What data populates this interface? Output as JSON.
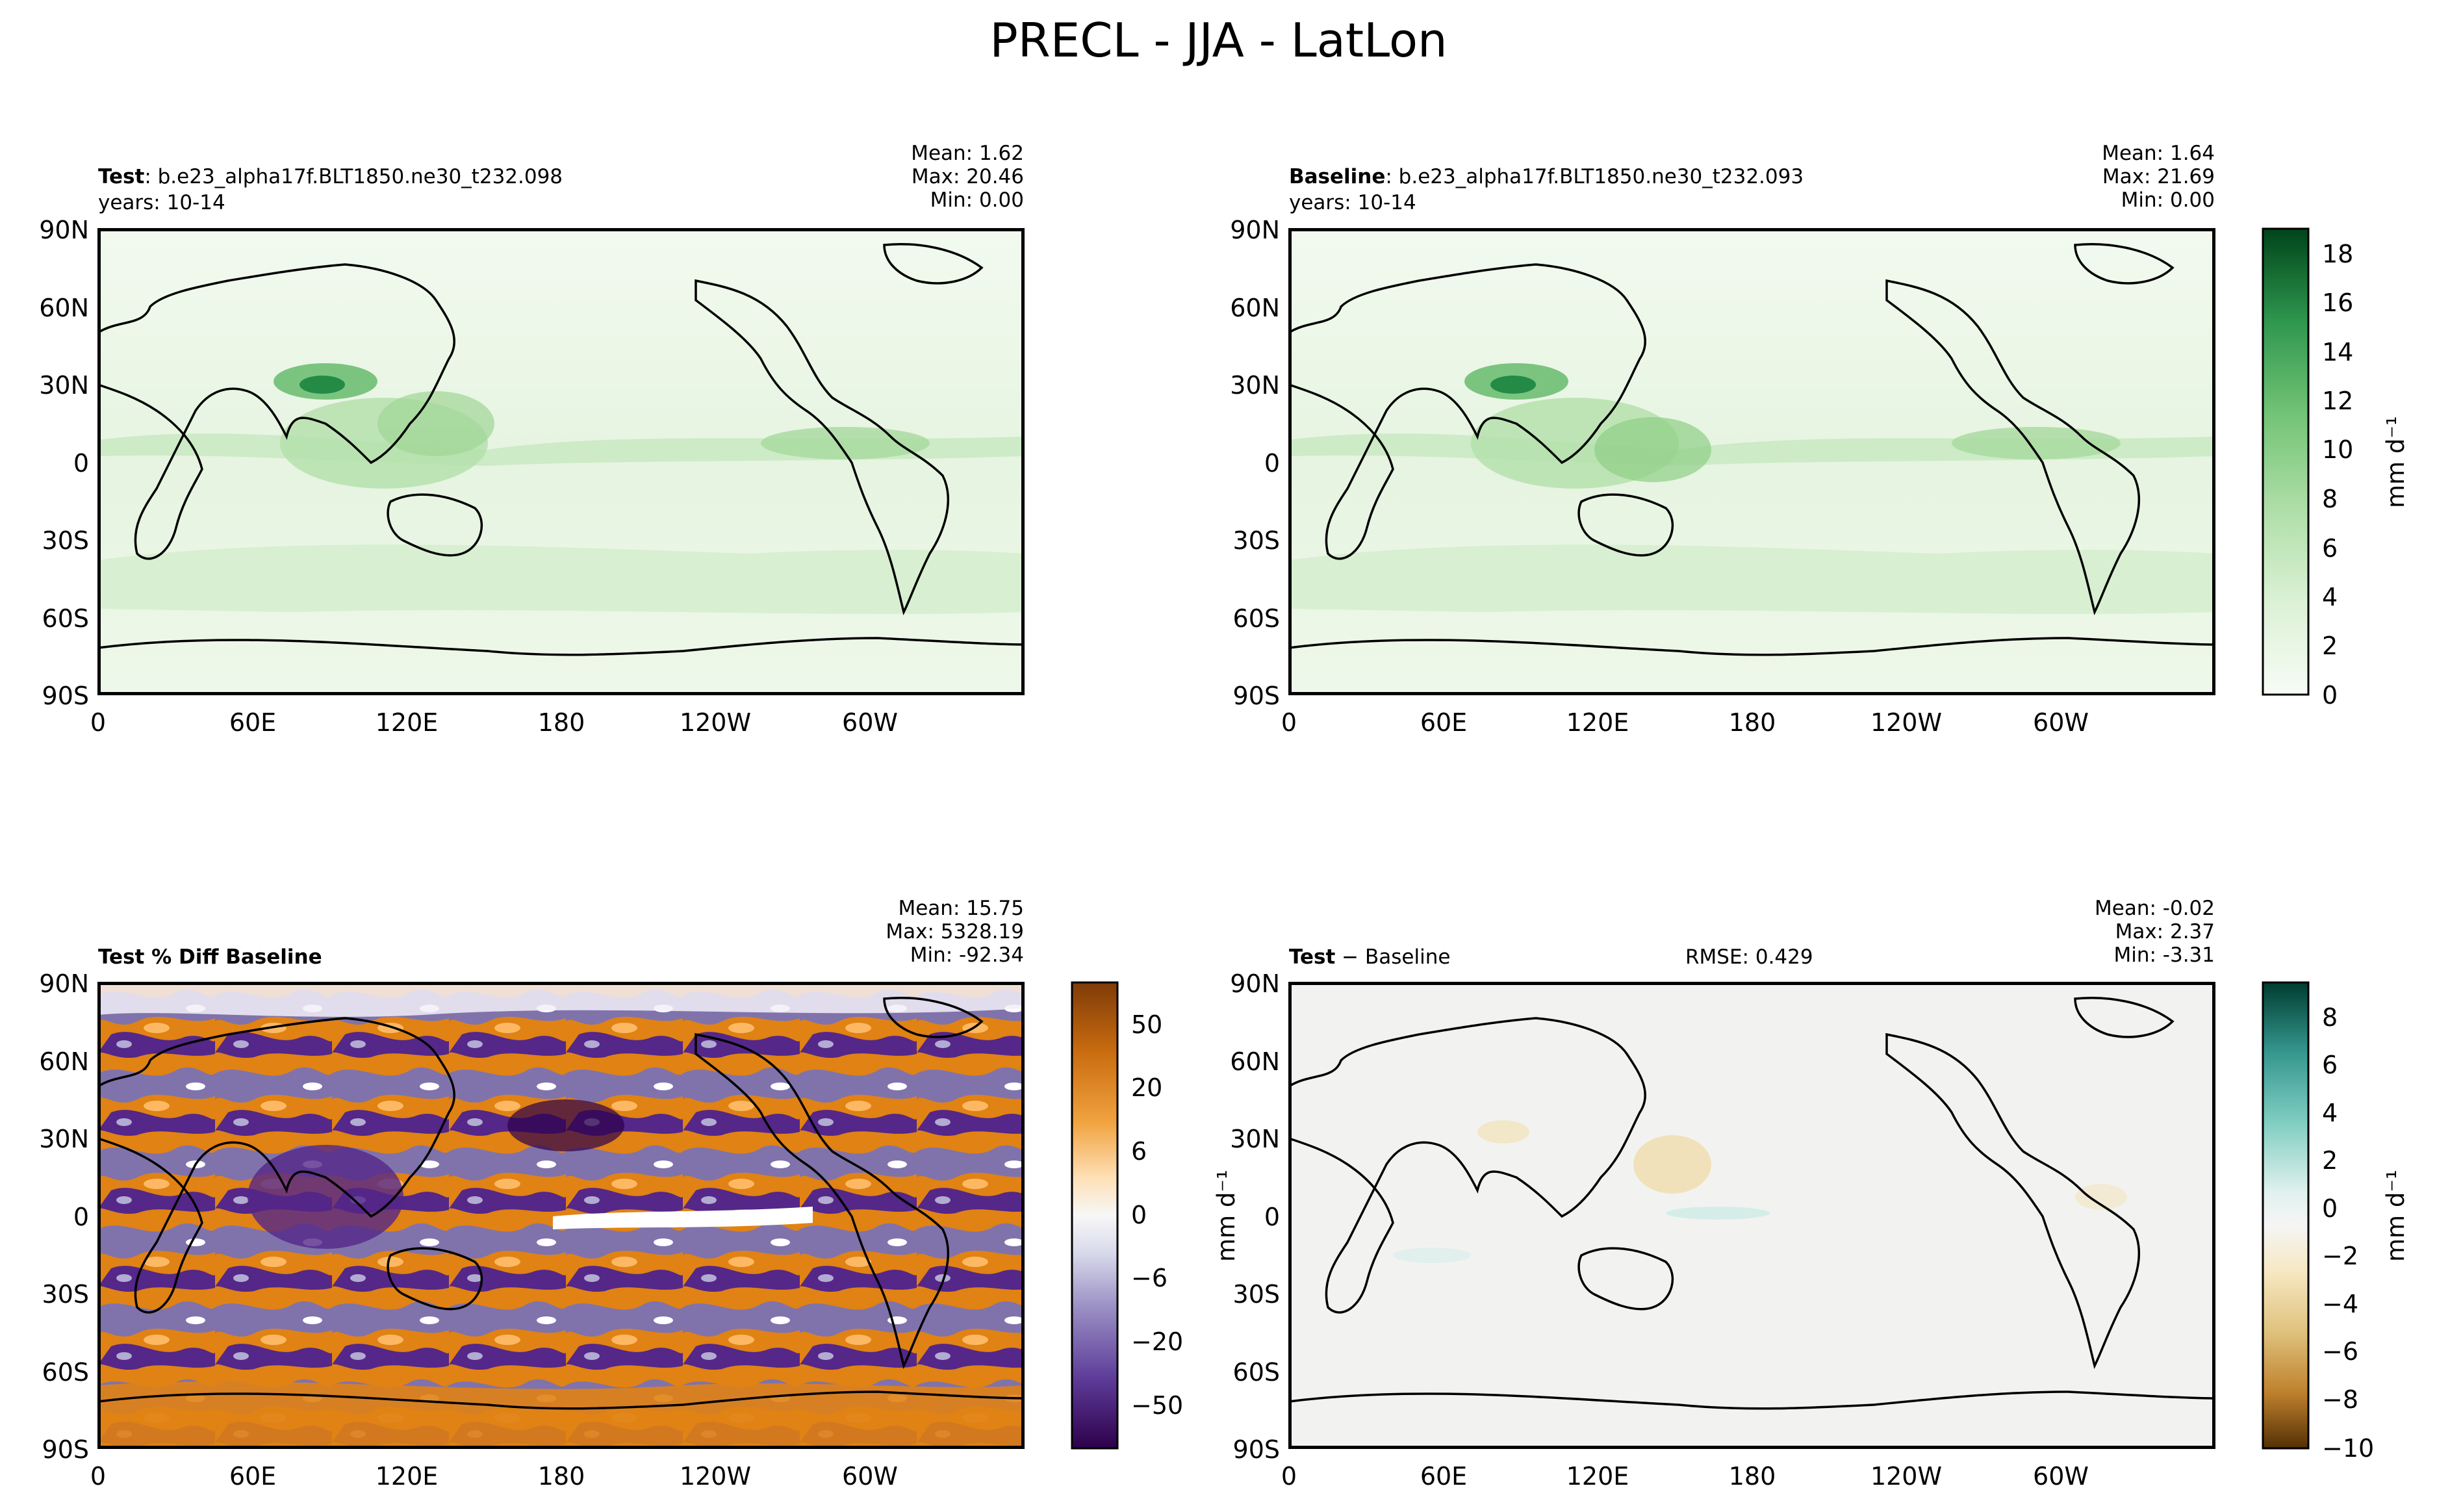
{
  "title": "PRECL - JJA - LatLon",
  "chart_data": [
    {
      "type": "heatmap",
      "panel": "test",
      "label_bold": "Test",
      "label_rest": ": b.e23_alpha17f.BLT1850.ne30_t232.098",
      "years": "years: 10-14",
      "stats": {
        "mean": "Mean:  1.62",
        "max": "Max: 20.46",
        "min": "Min:  0.00"
      },
      "x_ticks": [
        "0",
        "60E",
        "120E",
        "180",
        "120W",
        "60W"
      ],
      "y_ticks": [
        "90N",
        "60N",
        "30N",
        "0",
        "30S",
        "60S",
        "90S"
      ],
      "xlim": [
        0,
        360
      ],
      "ylim": [
        -90,
        90
      ]
    },
    {
      "type": "heatmap",
      "panel": "baseline",
      "label_bold": "Baseline",
      "label_rest": ": b.e23_alpha17f.BLT1850.ne30_t232.093",
      "years": "years: 10-14",
      "stats": {
        "mean": "Mean:  1.64",
        "max": "Max: 21.69",
        "min": "Min:  0.00"
      },
      "x_ticks": [
        "0",
        "60E",
        "120E",
        "180",
        "120W",
        "60W"
      ],
      "y_ticks": [
        "90N",
        "60N",
        "30N",
        "0",
        "30S",
        "60S",
        "90S"
      ],
      "xlim": [
        0,
        360
      ],
      "ylim": [
        -90,
        90
      ],
      "colorbar": {
        "ticks": [
          "0",
          "2",
          "4",
          "6",
          "8",
          "10",
          "12",
          "14",
          "16",
          "18"
        ],
        "range": [
          0,
          19
        ],
        "label": "mm d⁻¹",
        "colormap": "Greens"
      }
    },
    {
      "type": "heatmap",
      "panel": "percent-diff",
      "label_bold": "Test % Diff Baseline",
      "stats": {
        "mean": "Mean: 15.75",
        "max": "Max: 5328.19",
        "min": "Min: -92.34"
      },
      "x_ticks": [
        "0",
        "60E",
        "120E",
        "180",
        "120W",
        "60W"
      ],
      "y_ticks": [
        "90N",
        "60N",
        "30N",
        "0",
        "30S",
        "60S",
        "90S"
      ],
      "xlim": [
        0,
        360
      ],
      "ylim": [
        -90,
        90
      ],
      "colorbar": {
        "ticks": [
          "50",
          "20",
          "6",
          "0",
          "−6",
          "−20",
          "−50"
        ],
        "label": "",
        "colormap": "PuOr_r"
      }
    },
    {
      "type": "heatmap",
      "panel": "difference",
      "label_bold": "Test",
      "label_rest": " − Baseline",
      "rmse": "RMSE: 0.429",
      "stats": {
        "mean": "Mean: -0.02",
        "max": "Max:  2.37",
        "min": "Min: -3.31"
      },
      "x_ticks": [
        "0",
        "60E",
        "120E",
        "180",
        "120W",
        "60W"
      ],
      "y_ticks": [
        "90N",
        "60N",
        "30N",
        "0",
        "30S",
        "60S",
        "90S"
      ],
      "xlim": [
        0,
        360
      ],
      "ylim": [
        -90,
        90
      ],
      "left_label": "mm d⁻¹",
      "colorbar": {
        "ticks": [
          "8",
          "6",
          "4",
          "2",
          "0",
          "−2",
          "−4",
          "−6",
          "−8",
          "−10"
        ],
        "range": [
          -10,
          9.5
        ],
        "label": "mm d⁻¹",
        "colormap": "BrBG"
      }
    }
  ]
}
